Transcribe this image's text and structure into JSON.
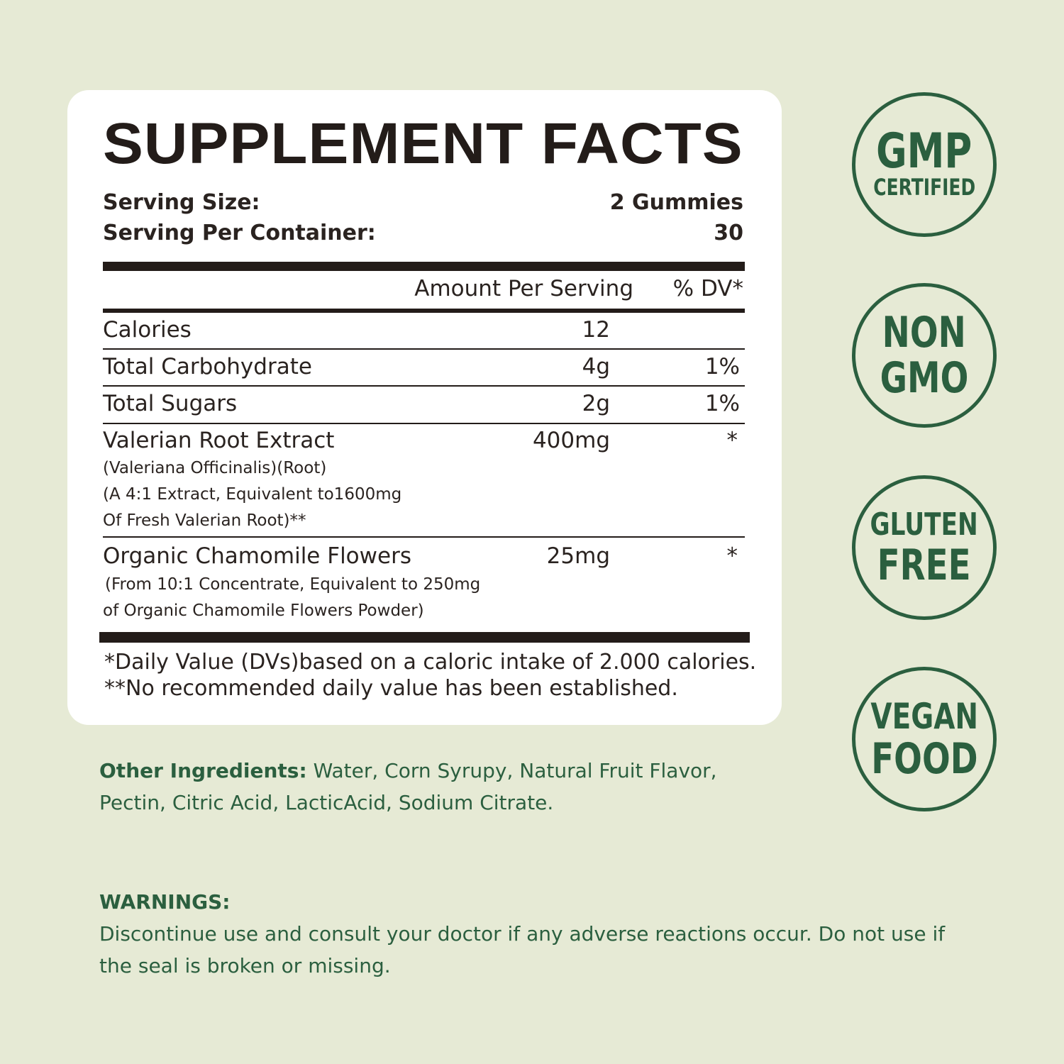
{
  "facts": {
    "title": "SUPPLEMENT FACTS",
    "serving_size_label": "Serving Size:",
    "serving_size_value": "2 Gummies",
    "servings_label": "Serving Per Container:",
    "servings_value": "30",
    "col_amount": "Amount Per Serving",
    "col_dv": "% DV*",
    "rows": [
      {
        "name": "Calories",
        "amount": "12",
        "dv": ""
      },
      {
        "name": "Total Carbohydrate",
        "amount": "4g",
        "dv": "1%"
      },
      {
        "name": "Total Sugars",
        "amount": "2g",
        "dv": "1%"
      },
      {
        "name": "Valerian Root Extract",
        "amount": "400mg",
        "dv": "*",
        "details": [
          "(Valeriana Officinalis)(Root)",
          "(A 4:1 Extract, Equivalent to1600mg",
          "Of Fresh Valerian Root)**"
        ]
      },
      {
        "name": "Organic Chamomile Flowers",
        "amount": "25mg",
        "dv": "*",
        "details": [
          "(From 10:1 Concentrate, Equivalent to 250mg",
          "of Organic Chamomile Flowers Powder)"
        ]
      }
    ],
    "footnote_1": "*Daily Value (DVs)based on a caloric intake of 2.000 calories.",
    "footnote_2": "**No recommended daily value has been established."
  },
  "other_ingredients": {
    "label": "Other Ingredients:",
    "text_1": " Water, Corn Syrupy, Natural Fruit Flavor,",
    "text_2": "Pectin, Citric Acid, LacticAcid, Sodium Citrate."
  },
  "warnings": {
    "label": "WARNINGS:",
    "text_1": "Discontinue use and consult your doctor if any adverse reactions occur. Do not use if",
    "text_2": "the seal is broken or missing."
  },
  "badges": [
    {
      "big": "GMP",
      "small": "CERTIFIED"
    },
    {
      "big": "NON",
      "big2": "GMO"
    },
    {
      "small": "GLUTEN",
      "big": "FREE"
    },
    {
      "small": "VEGAN",
      "big": "FOOD"
    }
  ],
  "colors": {
    "background": "#e6ead5",
    "brand_green": "#2b5f3f",
    "text": "#231c19"
  }
}
